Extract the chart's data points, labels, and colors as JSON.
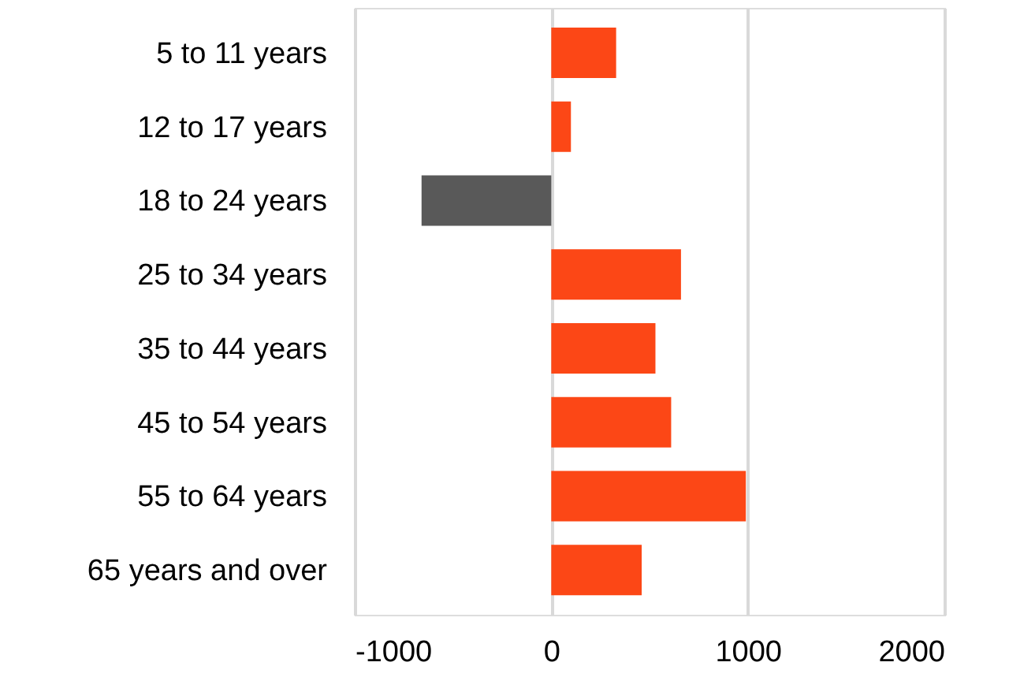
{
  "chart_data": {
    "type": "bar",
    "orientation": "horizontal",
    "categories": [
      "5 to 11 years",
      "12 to 17 years",
      "18 to 24 years",
      "25 to 34 years",
      "35 to 44 years",
      "45 to 54 years",
      "55 to 64 years",
      "65 years and over"
    ],
    "values": [
      330,
      100,
      -660,
      660,
      530,
      610,
      990,
      460
    ],
    "colors": [
      "#fc4716",
      "#fc4716",
      "#595959",
      "#fc4716",
      "#fc4716",
      "#fc4716",
      "#fc4716",
      "#fc4716"
    ],
    "xlim": [
      -1000,
      2000
    ],
    "xticks": [
      -1000,
      0,
      1000,
      2000
    ],
    "grid": "x"
  }
}
